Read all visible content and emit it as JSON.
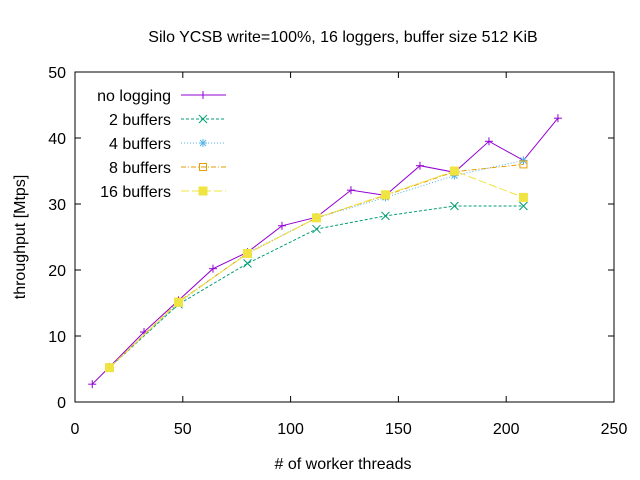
{
  "chart_data": {
    "type": "line",
    "title": "Silo YCSB write=100%, 16 loggers, buffer size 512 KiB",
    "xlabel": "# of worker threads",
    "ylabel": "throughput [Mtps]",
    "xlim": [
      0,
      250
    ],
    "ylim": [
      0,
      50
    ],
    "xticks": [
      0,
      50,
      100,
      150,
      200,
      250
    ],
    "yticks": [
      0,
      10,
      20,
      30,
      40,
      50
    ],
    "grid": false,
    "legend_position": "top-left",
    "series": [
      {
        "name": "no logging",
        "color": "#9400d3",
        "marker": "plus",
        "dash": "solid",
        "x": [
          8,
          16,
          32,
          48,
          64,
          80,
          96,
          112,
          128,
          144,
          160,
          176,
          192,
          208,
          224
        ],
        "y": [
          2.7,
          5.3,
          10.6,
          15.4,
          20.2,
          22.7,
          26.7,
          28.0,
          32.1,
          31.3,
          35.8,
          34.8,
          39.5,
          36.6,
          43.0
        ]
      },
      {
        "name": "2 buffers",
        "color": "#009e73",
        "marker": "x",
        "dash": "3,2",
        "x": [
          16,
          48,
          80,
          112,
          144,
          176,
          208
        ],
        "y": [
          5.2,
          14.8,
          21.0,
          26.2,
          28.2,
          29.7,
          29.7
        ]
      },
      {
        "name": "4 buffers",
        "color": "#56b4e9",
        "marker": "star",
        "dash": "1,2",
        "x": [
          16,
          48,
          80,
          112,
          144,
          176,
          208
        ],
        "y": [
          5.2,
          15.0,
          22.6,
          27.9,
          31.0,
          34.3,
          36.6
        ]
      },
      {
        "name": "8 buffers",
        "color": "#e69f00",
        "marker": "box",
        "dash": "5,2,1,2",
        "x": [
          16,
          48,
          80,
          112,
          144,
          176,
          208
        ],
        "y": [
          5.2,
          15.2,
          22.5,
          27.9,
          31.3,
          34.9,
          36.0
        ]
      },
      {
        "name": "16 buffers",
        "color": "#f0e442",
        "marker": "filled-box",
        "dash": "8,3",
        "x": [
          16,
          48,
          80,
          112,
          144,
          176,
          208
        ],
        "y": [
          5.2,
          15.1,
          22.5,
          27.9,
          31.4,
          35.0,
          31.0
        ]
      }
    ]
  }
}
